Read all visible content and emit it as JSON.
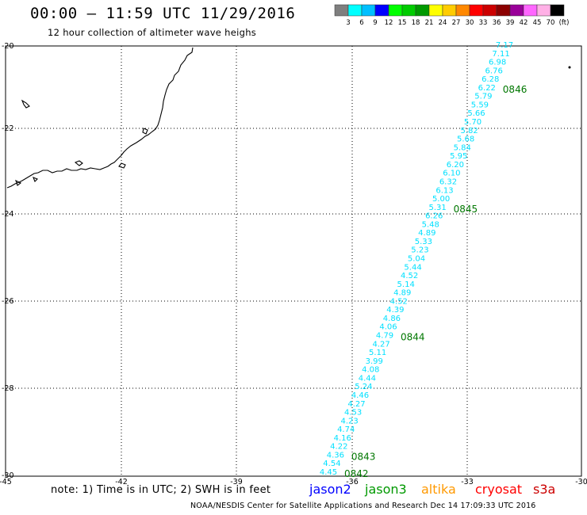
{
  "header": {
    "title": "00:00 — 11:59 UTC 11/29/2016",
    "subtitle": "12 hour collection of altimeter wave heighs"
  },
  "colorbar": {
    "colors": [
      "#7f7f7f",
      "#00ffff",
      "#00bfff",
      "#0000ff",
      "#00ff00",
      "#00cc00",
      "#009900",
      "#ffff00",
      "#ffcc00",
      "#ff8800",
      "#ff0000",
      "#cc0000",
      "#8b0000",
      "#990099",
      "#ff66ff",
      "#ffb0e6",
      "#000000"
    ],
    "labels": [
      "3",
      "6",
      "9",
      "12",
      "15",
      "18",
      "21",
      "24",
      "27",
      "30",
      "33",
      "36",
      "39",
      "42",
      "45",
      "70",
      "(ft)"
    ]
  },
  "axes": {
    "lat_labels": [
      "-20",
      "-22",
      "-24",
      "-26",
      "-28",
      "-30"
    ],
    "lon_labels": [
      "-45",
      "-42",
      "-39",
      "-36",
      "-33",
      "-30"
    ]
  },
  "chart_data": {
    "type": "scatter",
    "units": "ft",
    "track_values": [
      "7.17",
      "7.11",
      "6.98",
      "6.76",
      "6.28",
      "6.22",
      "5.79",
      "5.59",
      "5.66",
      "5.70",
      "5.82",
      "5.68",
      "5.84",
      "5.95",
      "6.20",
      "6.10",
      "6.32",
      "6.13",
      "5.00",
      "5.31",
      "6.26",
      "5.48",
      "4.89",
      "5.33",
      "5.23",
      "5.04",
      "5.44",
      "4.52",
      "5.14",
      "4.89",
      "4.52",
      "4.39",
      "4.86",
      "4.06",
      "4.79",
      "4.27",
      "5.11",
      "3.99",
      "4.08",
      "4.44",
      "5.24",
      "4.46",
      "4.27",
      "4.53",
      "4.23",
      "4.74",
      "4.16",
      "4.22",
      "4.36",
      "4.54",
      "4.45"
    ],
    "time_labels": [
      "0846",
      "0845",
      "0844",
      "0843",
      "0842"
    ],
    "track_color": "#00e0ff",
    "time_color": "#007700"
  },
  "note": "note: 1) Time is in UTC; 2) SWH is in feet",
  "satellites": [
    {
      "name": "jason2",
      "color": "#0000ff"
    },
    {
      "name": "jason3",
      "color": "#009900"
    },
    {
      "name": "altika",
      "color": "#ff9900"
    },
    {
      "name": "cryosat",
      "color": "#ff0000"
    },
    {
      "name": "s3a",
      "color": "#cc0000"
    }
  ],
  "footer": "NOAA/NESDIS Center for Satellite Applications and Research    Dec 14 17:09:33 UTC 2016"
}
